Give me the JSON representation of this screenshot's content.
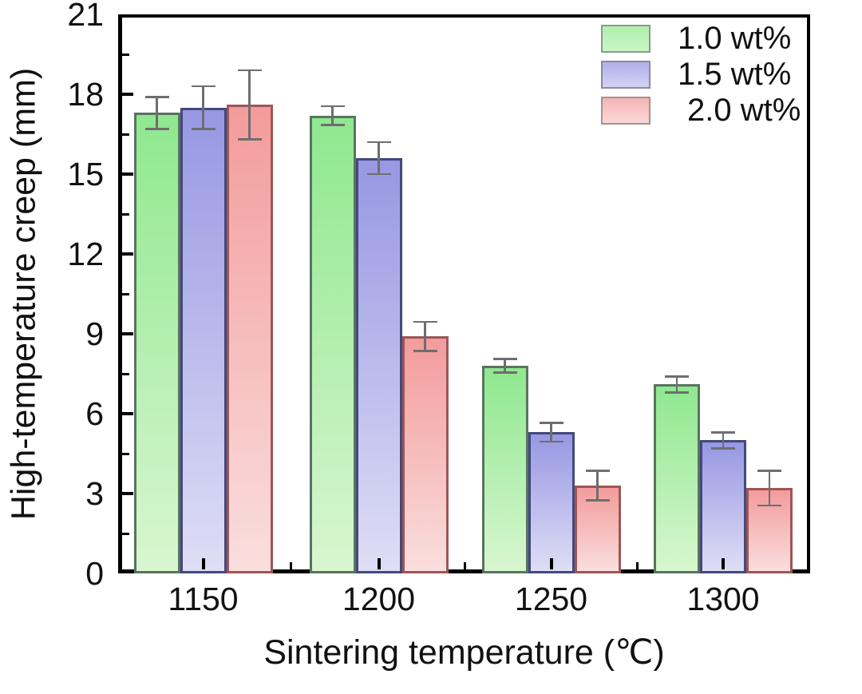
{
  "figure": {
    "background": "#ffffff",
    "text_color": "#111111",
    "axis_color": "#000000"
  },
  "chart_data": {
    "type": "bar",
    "title": "",
    "xlabel": "Sintering temperature (℃)",
    "ylabel": "High-temperature creep (mm)",
    "categories": [
      "1150",
      "1200",
      "1250",
      "1300"
    ],
    "ylim": [
      0,
      21
    ],
    "yticks_major": [
      0,
      3,
      6,
      9,
      12,
      15,
      18,
      21
    ],
    "yticks_minor": [
      1.5,
      4.5,
      7.5,
      10.5,
      13.5,
      16.5,
      19.5
    ],
    "grid": false,
    "legend_position": "top-right-inside",
    "error_bars": true,
    "error_bar_color": "#6e6e6e",
    "series": [
      {
        "name": "1.0 wt%",
        "values": [
          17.3,
          17.2,
          7.8,
          7.1
        ],
        "errors": [
          0.6,
          0.35,
          0.25,
          0.3
        ],
        "fill_top": "#8fe88f",
        "fill_bottom": "#d8f6d0",
        "border": "#5a7360",
        "legend_fill_top": "#aff0ad",
        "legend_fill_bottom": "#c9f5c5",
        "legend_border": "#8a9a8a"
      },
      {
        "name": "1.5 wt%",
        "values": [
          17.5,
          15.6,
          5.3,
          5.0
        ],
        "errors": [
          0.8,
          0.6,
          0.35,
          0.3
        ],
        "fill_top": "#9797e3",
        "fill_bottom": "#dedef6",
        "border": "#42497c",
        "legend_fill_top": "#b0b0ea",
        "legend_fill_bottom": "#d2d2f4",
        "legend_border": "#8a8a9e"
      },
      {
        "name": "2.0 wt%",
        "values": [
          17.6,
          8.9,
          3.3,
          3.2
        ],
        "errors": [
          1.3,
          0.55,
          0.55,
          0.65
        ],
        "fill_top": "#f39b9b",
        "fill_bottom": "#fadede",
        "border": "#9c5656",
        "legend_fill_top": "#f4b4b4",
        "legend_fill_bottom": "#f9d8d8",
        "legend_border": "#a89090"
      }
    ]
  }
}
